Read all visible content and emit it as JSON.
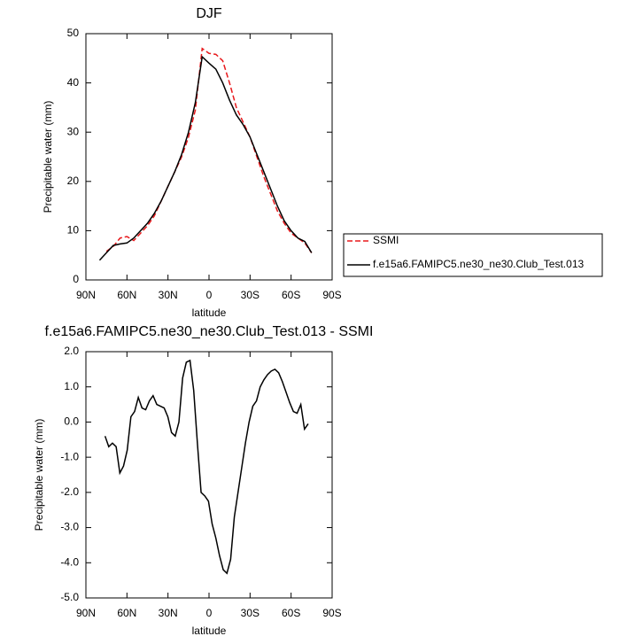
{
  "chart_data": [
    {
      "type": "line",
      "title": "DJF",
      "xlabel": "latitude",
      "ylabel": "Precipitable water (mm)",
      "xlim": [
        90,
        -90
      ],
      "xticks": [
        {
          "value": 90,
          "label": "90N"
        },
        {
          "value": 60,
          "label": "60N"
        },
        {
          "value": 30,
          "label": "30N"
        },
        0,
        {
          "value": -30,
          "label": "30S"
        },
        {
          "value": -60,
          "label": "60S"
        },
        {
          "value": -90,
          "label": "90S"
        }
      ],
      "ylim": [
        0,
        50
      ],
      "yticks": [
        0,
        10,
        20,
        30,
        40,
        50
      ],
      "legend": "right",
      "x": [
        80,
        75,
        70,
        65,
        60,
        55,
        50,
        45,
        40,
        35,
        30,
        25,
        20,
        15,
        10,
        5,
        0,
        -5,
        -10,
        -15,
        -20,
        -25,
        -30,
        -35,
        -40,
        -45,
        -50,
        -55,
        -60,
        -65,
        -70,
        -75
      ],
      "series": [
        {
          "name": "SSMI",
          "color": "#e8191c",
          "line_style": "dashed",
          "values": [
            null,
            5.8,
            6.8,
            8.5,
            8.8,
            8,
            9.5,
            11,
            13,
            16,
            19,
            22,
            25,
            29,
            34.5,
            47,
            46,
            45.8,
            44.5,
            40,
            35,
            32,
            29,
            25,
            21,
            17.5,
            14,
            11.5,
            9.5,
            8.5,
            7.5,
            5.5
          ]
        },
        {
          "name": "f.e15a6.FAMIPC5.ne30_ne30.Club_Test.013",
          "color": "#000000",
          "line_style": "solid",
          "values": [
            4,
            5.5,
            7,
            7.3,
            7.5,
            8.5,
            10,
            11.5,
            13.5,
            16,
            19,
            22,
            25.5,
            30,
            36,
            45.3,
            44,
            42.8,
            40,
            36.5,
            33.5,
            31.5,
            29,
            25.5,
            22,
            18.5,
            15,
            12,
            10,
            8.5,
            7.8,
            5.5
          ]
        }
      ]
    },
    {
      "type": "line",
      "title": "f.e15a6.FAMIPC5.ne30_ne30.Club_Test.013 - SSMI",
      "xlabel": "latitude",
      "ylabel": "Precipitable water (mm)",
      "xlim": [
        90,
        -90
      ],
      "xticks": [
        {
          "value": 90,
          "label": "90N"
        },
        {
          "value": 60,
          "label": "60N"
        },
        {
          "value": 30,
          "label": "30N"
        },
        0,
        {
          "value": -30,
          "label": "30S"
        },
        {
          "value": -60,
          "label": "60S"
        },
        {
          "value": -90,
          "label": "90S"
        }
      ],
      "ylim": [
        -5,
        2
      ],
      "yticks": [
        {
          "value": 2,
          "label": "2.0"
        },
        {
          "value": 1,
          "label": "1.0"
        },
        {
          "value": 0,
          "label": "0.0"
        },
        {
          "value": -1,
          "label": "-1.0"
        },
        {
          "value": -2,
          "label": "-2.0"
        },
        {
          "value": -3,
          "label": "-3.0"
        },
        {
          "value": -4,
          "label": "-4.0"
        },
        {
          "value": -5,
          "label": "-5.0"
        }
      ],
      "color": "#000000",
      "x": [
        76,
        73.3,
        70.6,
        67.9,
        65.2,
        62.5,
        59.8,
        57.1,
        54.4,
        51.7,
        49,
        46.3,
        43.6,
        40.9,
        38.2,
        35.5,
        32.8,
        30.1,
        27.4,
        24.7,
        22,
        19.3,
        16.6,
        13.9,
        11.2,
        8.5,
        5.8,
        3.1,
        0.4,
        -2.3,
        -5,
        -7.7,
        -10.4,
        -13.1,
        -15.8,
        -18.5,
        -21.2,
        -23.9,
        -26.6,
        -29.3,
        -32,
        -34.7,
        -37.4,
        -40.1,
        -42.8,
        -45.5,
        -48.2,
        -50.9,
        -53.6,
        -56.3,
        -59,
        -61.7,
        -64.4,
        -67.1,
        -69.8,
        -72.5
      ],
      "values": [
        -0.4,
        -0.7,
        -0.6,
        -0.7,
        -1.45,
        -1.25,
        -0.8,
        0.15,
        0.3,
        0.7,
        0.4,
        0.35,
        0.6,
        0.75,
        0.5,
        0.45,
        0.4,
        0.15,
        -0.3,
        -0.4,
        0,
        1.25,
        1.7,
        1.75,
        0.9,
        -0.6,
        -2.0,
        -2.1,
        -2.25,
        -2.9,
        -3.3,
        -3.8,
        -4.2,
        -4.3,
        -3.9,
        -2.7,
        -2.0,
        -1.3,
        -0.6,
        0.0,
        0.45,
        0.6,
        1.0,
        1.2,
        1.35,
        1.45,
        1.5,
        1.4,
        1.15,
        0.85,
        0.55,
        0.3,
        0.25,
        0.5,
        -0.2,
        -0.05
      ]
    }
  ]
}
